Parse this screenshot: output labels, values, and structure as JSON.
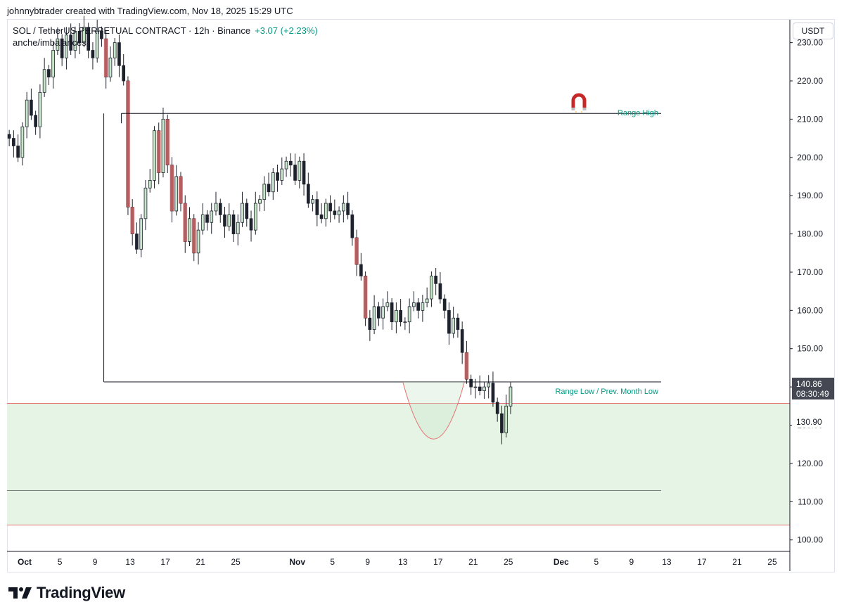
{
  "header": {
    "caption": "johnnybtrader created with TradingView.com, Nov 18, 2025 15:29 UTC"
  },
  "symbol": {
    "title": "SOL / TetherUS PERPETUAL CONTRACT · 12h · Binance",
    "change": "+3.07 (+2.23%)",
    "indicator": "anche/imbalances"
  },
  "currency_button": "USDT",
  "price_badges": {
    "last_price": "140.86",
    "countdown": "08:30:49",
    "level_label": "130.90"
  },
  "annotations": {
    "range_high": "Range High",
    "range_low": "Range Low / Prev. Month Low"
  },
  "brand": {
    "name": "TradingView"
  },
  "colors": {
    "bull": "#c8e6c9",
    "bear": "#1e222d",
    "imbalance": "#e57373",
    "demand_zone": "#e6f4e6",
    "zone_line": "#e57373",
    "accent": "#089981"
  },
  "icons": {
    "magnet": "magnet-icon",
    "logo": "tradingview-logo-icon"
  },
  "chart_data": {
    "type": "candlestick",
    "interval": "12h",
    "y_axis": {
      "range": [
        97,
        236
      ],
      "ticks": [
        100,
        110,
        120,
        130,
        140,
        150,
        160,
        170,
        180,
        190,
        200,
        210,
        220,
        230
      ]
    },
    "x_axis": {
      "range": [
        "2025-09-29",
        "2025-12-27"
      ],
      "ticks": [
        {
          "date": "2025-10-01",
          "label": "Oct",
          "bold": true
        },
        {
          "date": "2025-10-05",
          "label": "5"
        },
        {
          "date": "2025-10-09",
          "label": "9"
        },
        {
          "date": "2025-10-13",
          "label": "13"
        },
        {
          "date": "2025-10-17",
          "label": "17"
        },
        {
          "date": "2025-10-21",
          "label": "21"
        },
        {
          "date": "2025-10-25",
          "label": "25"
        },
        {
          "date": "2025-11-01",
          "label": "Nov",
          "bold": true
        },
        {
          "date": "2025-11-05",
          "label": "5"
        },
        {
          "date": "2025-11-09",
          "label": "9"
        },
        {
          "date": "2025-11-13",
          "label": "13"
        },
        {
          "date": "2025-11-17",
          "label": "17"
        },
        {
          "date": "2025-11-21",
          "label": "21"
        },
        {
          "date": "2025-11-25",
          "label": "25"
        },
        {
          "date": "2025-12-01",
          "label": "Dec",
          "bold": true
        },
        {
          "date": "2025-12-05",
          "label": "5"
        },
        {
          "date": "2025-12-09",
          "label": "9"
        },
        {
          "date": "2025-12-13",
          "label": "13"
        },
        {
          "date": "2025-12-17",
          "label": "17"
        },
        {
          "date": "2025-12-21",
          "label": "21"
        },
        {
          "date": "2025-12-25",
          "label": "25"
        }
      ]
    },
    "closes": [
      205,
      203,
      200,
      208,
      215,
      211,
      208,
      217,
      223,
      221,
      228,
      231,
      226,
      232,
      228,
      233,
      230,
      234,
      228,
      226,
      233,
      231,
      221,
      226,
      230,
      224,
      220,
      187,
      180,
      176,
      184,
      192,
      194,
      207,
      196,
      210,
      198,
      186,
      195,
      188,
      178,
      184,
      175,
      181,
      185,
      183,
      186,
      188,
      185,
      182,
      185,
      180,
      183,
      188,
      184,
      181,
      188,
      189,
      193,
      191,
      196,
      194,
      197,
      199,
      198,
      194,
      199,
      193,
      188,
      189,
      185,
      184,
      188,
      186,
      185,
      186,
      188,
      185,
      179,
      172,
      169,
      158,
      155,
      161,
      158,
      161,
      162,
      157,
      160,
      157,
      157,
      161,
      162,
      160,
      162,
      163,
      169,
      167,
      163,
      160,
      154,
      158,
      155,
      149,
      142,
      140,
      140,
      139,
      140,
      141,
      136,
      133,
      128,
      135,
      140
    ],
    "candle_start": "2025-09-29T00:00:00",
    "series": [
      {
        "name": "Range High",
        "y": 211.5,
        "x_start": "2025-10-12"
      },
      {
        "name": "Range Low / Prev. Month Low",
        "y": 141.3,
        "x_start": "2025-10-10"
      }
    ],
    "zones": {
      "demand_zone": {
        "top": 135.7,
        "bottom": 103.9
      },
      "mid_line": 112.9
    },
    "last_price": 140.86,
    "level_marker": 130.9
  }
}
